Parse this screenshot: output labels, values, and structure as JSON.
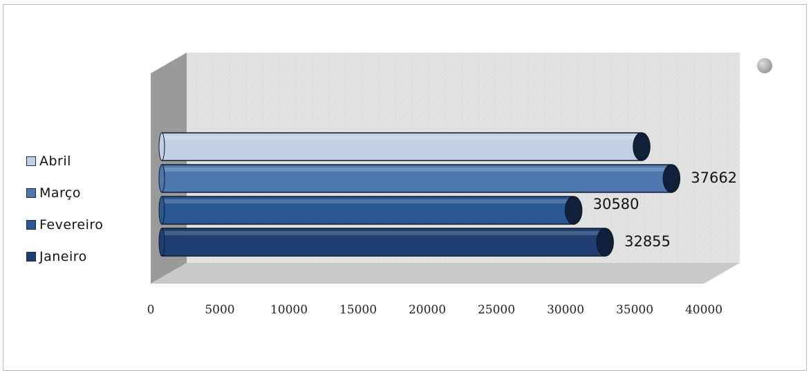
{
  "chart_data": {
    "type": "bar",
    "orientation": "horizontal",
    "style": "3d-cylinder",
    "categories": [
      "Janeiro",
      "Fevereiro",
      "Março",
      "Abril"
    ],
    "values": [
      32855,
      30580,
      37662,
      35500
    ],
    "data_labels": [
      "32855",
      "30580",
      "37662",
      ""
    ],
    "colors": [
      "#1f3f73",
      "#2a578f",
      "#4e77ad",
      "#c3cfe2"
    ],
    "legend_order": [
      "Abril",
      "Março",
      "Fevereiro",
      "Janeiro"
    ],
    "legend_position": "left",
    "xlim": [
      0,
      40000
    ],
    "x_ticks": [
      "0",
      "5000",
      "10000",
      "15000",
      "20000",
      "25000",
      "30000",
      "35000",
      "40000"
    ],
    "title": "",
    "xlabel": "",
    "ylabel": ""
  },
  "legend": {
    "items": [
      {
        "label": "Abril",
        "color": "#c3cfe2"
      },
      {
        "label": "Março",
        "color": "#4e77ad"
      },
      {
        "label": "Fevereiro",
        "color": "#2a578f"
      },
      {
        "label": "Janeiro",
        "color": "#1f3f73"
      }
    ]
  }
}
